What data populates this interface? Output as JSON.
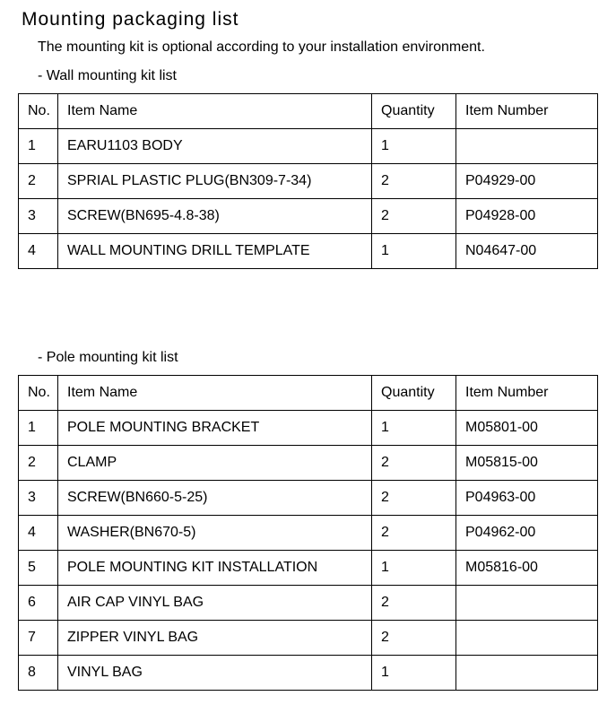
{
  "title": "Mounting packaging list",
  "intro": "The mounting kit is optional according to your installation environment.",
  "section1_label": "- Wall mounting kit list",
  "section2_label": "- Pole mounting kit list",
  "headers": {
    "no": "No.",
    "item_name": "Item Name",
    "quantity": "Quantity",
    "item_number": "Item Number"
  },
  "wall": [
    {
      "no": "1",
      "name": "EARU1103 BODY",
      "qty": "1",
      "num": ""
    },
    {
      "no": "2",
      "name": "SPRIAL PLASTIC PLUG(BN309-7-34)",
      "qty": "2",
      "num": "P04929-00"
    },
    {
      "no": "3",
      "name": "SCREW(BN695-4.8-38)",
      "qty": "2",
      "num": "P04928-00"
    },
    {
      "no": "4",
      "name": "WALL MOUNTING DRILL TEMPLATE",
      "qty": "1",
      "num": "N04647-00"
    }
  ],
  "pole": [
    {
      "no": "1",
      "name": "POLE MOUNTING BRACKET",
      "qty": "1",
      "num": "M05801-00"
    },
    {
      "no": "2",
      "name": "CLAMP",
      "qty": "2",
      "num": "M05815-00"
    },
    {
      "no": "3",
      "name": "SCREW(BN660-5-25)",
      "qty": "2",
      "num": "P04963-00"
    },
    {
      "no": "4",
      "name": "WASHER(BN670-5)",
      "qty": "2",
      "num": "P04962-00"
    },
    {
      "no": "5",
      "name": "POLE MOUNTING KIT INSTALLATION",
      "qty": "1",
      "num": "M05816-00"
    },
    {
      "no": "6",
      "name": "AIR CAP VINYL BAG",
      "qty": "2",
      "num": ""
    },
    {
      "no": "7",
      "name": "ZIPPER VINYL BAG",
      "qty": "2",
      "num": ""
    },
    {
      "no": "8",
      "name": "VINYL BAG",
      "qty": "1",
      "num": ""
    }
  ]
}
